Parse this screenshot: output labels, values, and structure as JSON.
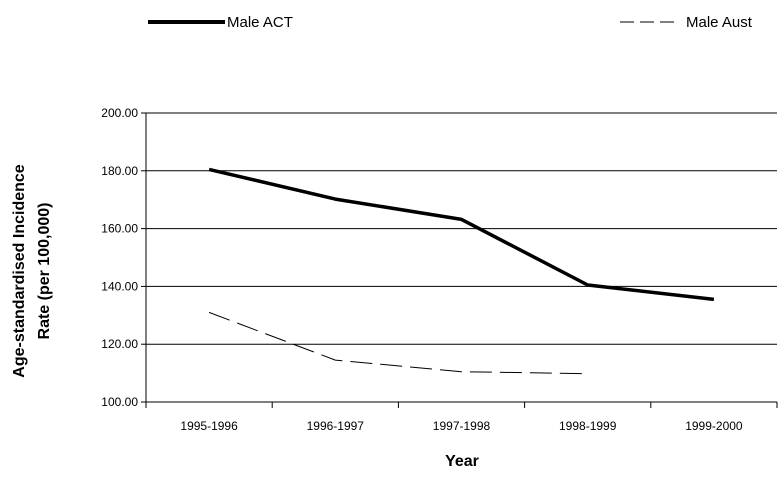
{
  "chart_data": {
    "type": "line",
    "title": "",
    "xlabel": "Year",
    "ylabel_lines": [
      "Age-standardised Incidence",
      "Rate (per 100,000)"
    ],
    "categories": [
      "1995-1996",
      "1996-1997",
      "1997-1998",
      "1998-1999",
      "1999-2000"
    ],
    "ylim": [
      100,
      200
    ],
    "yticks": [
      "100.00",
      "120.00",
      "140.00",
      "160.00",
      "180.00",
      "200.00"
    ],
    "grid": true,
    "legend_position": "top",
    "series": [
      {
        "name": "Male ACT",
        "values": [
          180.5,
          170.2,
          163.2,
          140.5,
          135.5
        ],
        "color": "#000000",
        "style": "solid-thick"
      },
      {
        "name": "Male Aust",
        "values": [
          131.0,
          114.5,
          110.5,
          109.8,
          null
        ],
        "color": "#000000",
        "style": "dashed-thin"
      }
    ]
  }
}
